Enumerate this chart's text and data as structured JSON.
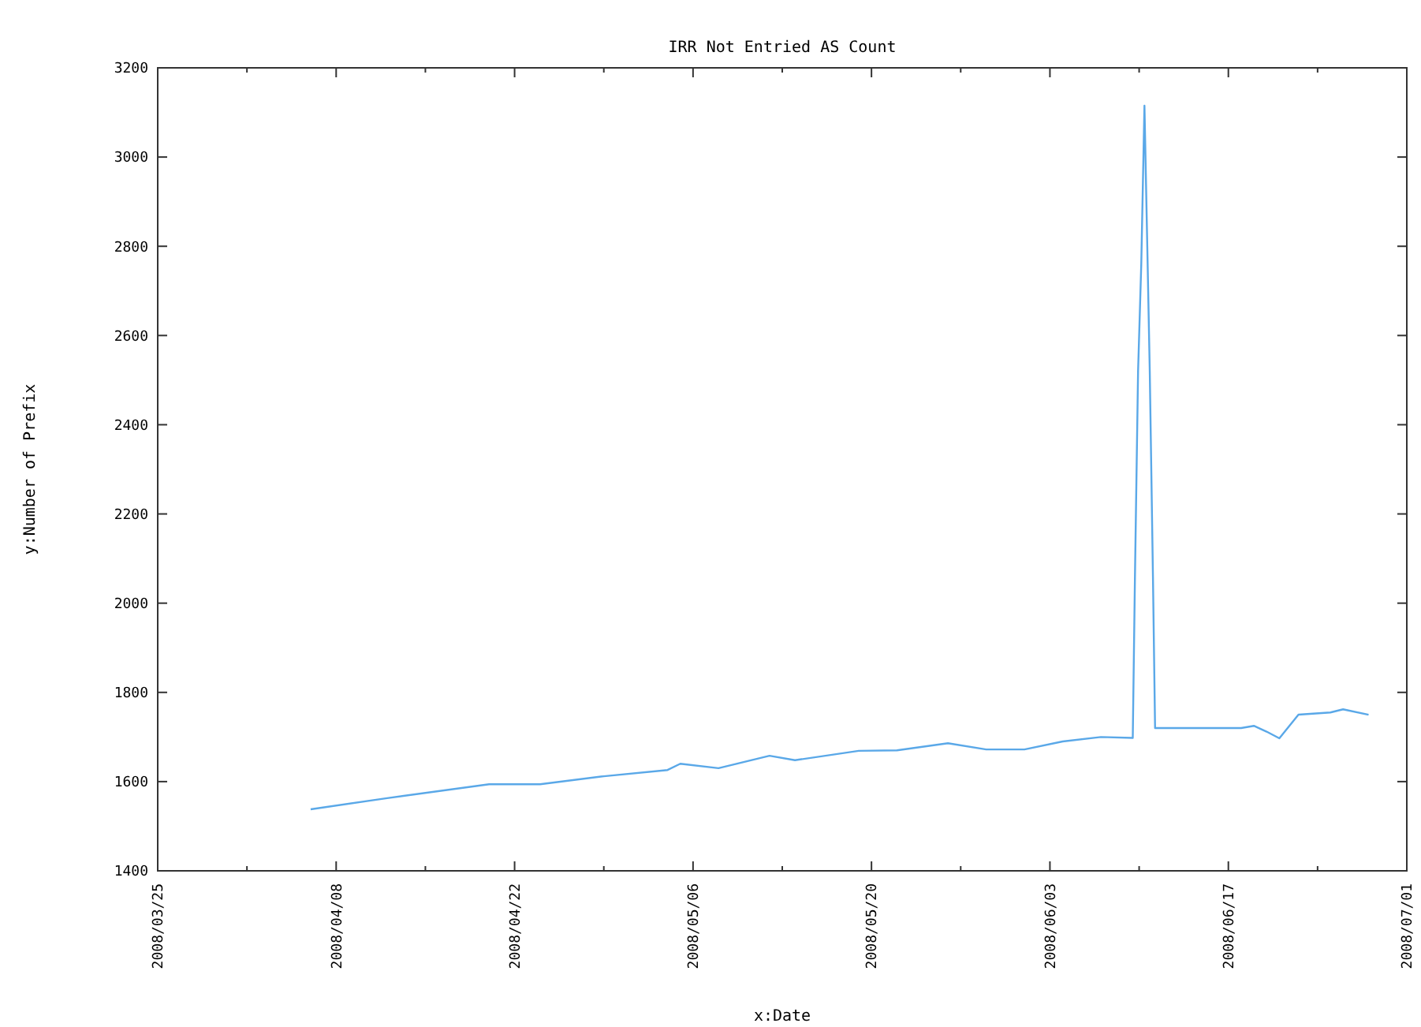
{
  "chart_data": {
    "type": "line",
    "title": "IRR Not Entried AS Count",
    "xlabel": "x:Date",
    "ylabel": "y:Number of Prefix",
    "x": [
      "2008-04-06",
      "2008-04-12",
      "2008-04-20",
      "2008-04-24",
      "2008-04-29",
      "2008-05-04",
      "2008-05-05",
      "2008-05-08",
      "2008-05-12",
      "2008-05-14",
      "2008-05-19",
      "2008-05-22",
      "2008-05-26",
      "2008-05-29",
      "2008-06-01",
      "2008-06-04",
      "2008-06-07",
      "2008-06-09T12:00",
      "2008-06-09T16:00",
      "2008-06-09T22:00",
      "2008-06-10T04:00",
      "2008-06-10T10:00",
      "2008-06-10T16:00",
      "2008-06-10T20:00",
      "2008-06-11T02:00",
      "2008-06-11T06:00",
      "2008-06-18",
      "2008-06-19",
      "2008-06-20",
      "2008-06-21",
      "2008-06-22T12:00",
      "2008-06-25",
      "2008-06-26",
      "2008-06-28"
    ],
    "series": [
      {
        "color": "#5aa8e8",
        "values": [
          1538,
          1563,
          1594,
          1594,
          1612,
          1626,
          1640,
          1630,
          1658,
          1648,
          1669,
          1670,
          1686,
          1672,
          1672,
          1690,
          1700,
          1698,
          2050,
          2520,
          2760,
          3115,
          2760,
          2520,
          2060,
          1720,
          1720,
          1725,
          1712,
          1697,
          1750,
          1755,
          1762,
          1750
        ]
      }
    ],
    "xlim": [
      "2008-03-25",
      "2008-07-01"
    ],
    "xticks": [
      {
        "value": "2008-03-25",
        "label": "2008/03/25"
      },
      {
        "value": "2008-04-01",
        "label": null
      },
      {
        "value": "2008-04-08",
        "label": "2008/04/08"
      },
      {
        "value": "2008-04-15",
        "label": null
      },
      {
        "value": "2008-04-22",
        "label": "2008/04/22"
      },
      {
        "value": "2008-04-29",
        "label": null
      },
      {
        "value": "2008-05-06",
        "label": "2008/05/06"
      },
      {
        "value": "2008-05-13",
        "label": null
      },
      {
        "value": "2008-05-20",
        "label": "2008/05/20"
      },
      {
        "value": "2008-05-27",
        "label": null
      },
      {
        "value": "2008-06-03",
        "label": "2008/06/03"
      },
      {
        "value": "2008-06-10",
        "label": null
      },
      {
        "value": "2008-06-17",
        "label": "2008/06/17"
      },
      {
        "value": "2008-06-24",
        "label": null
      },
      {
        "value": "2008-07-01",
        "label": "2008/07/01"
      }
    ],
    "ylim": [
      1400,
      3200
    ],
    "yticks": [
      1400,
      1600,
      1800,
      2000,
      2200,
      2400,
      2600,
      2800,
      3000,
      3200
    ],
    "grid": false,
    "marker": "none",
    "line_style": "solid"
  }
}
